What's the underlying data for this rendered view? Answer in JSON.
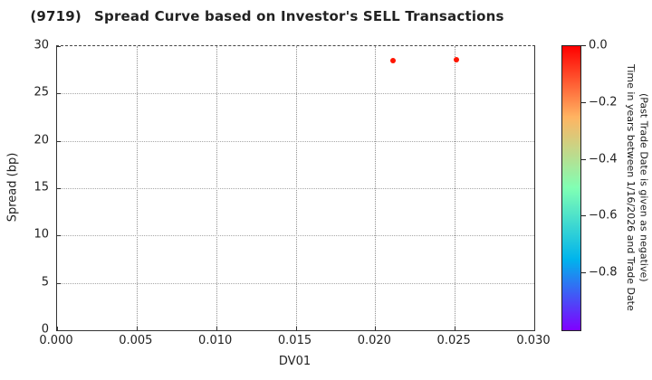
{
  "chart_data": {
    "type": "scatter",
    "title": "(9719)  Spread Curve based on Investor's SELL Transactions",
    "title_ticker": "(9719)",
    "title_text": "Spread Curve based on Investor's SELL Transactions",
    "xlabel": "DV01",
    "ylabel": "Spread (bp)",
    "xlim": [
      0.0,
      0.03
    ],
    "ylim": [
      0,
      30
    ],
    "grid": true,
    "xticks": {
      "values": [
        0.0,
        0.005,
        0.01,
        0.015,
        0.02,
        0.025,
        0.03
      ],
      "labels": [
        "0.000",
        "0.005",
        "0.010",
        "0.015",
        "0.020",
        "0.025",
        "0.030"
      ]
    },
    "yticks": {
      "values": [
        0,
        5,
        10,
        15,
        20,
        25,
        30
      ],
      "labels": [
        "0",
        "5",
        "10",
        "15",
        "20",
        "25",
        "30"
      ]
    },
    "points": [
      {
        "x": 0.0211,
        "y": 28.5,
        "time_value": 0.0,
        "color": "#ff1500"
      },
      {
        "x": 0.0251,
        "y": 28.6,
        "time_value": 0.0,
        "color": "#ff1500"
      }
    ],
    "colorbar": {
      "label_line1": "Time in years between 1/16/2026 and Trade Date",
      "label_line2": "(Past Trade Date is given as negative)",
      "range": [
        -1.0,
        0.0
      ],
      "ticks": {
        "values": [
          0.0,
          -0.2,
          -0.4,
          -0.6,
          -0.8
        ],
        "labels": [
          "0.0",
          "−0.2",
          "−0.4",
          "−0.6",
          "−0.8"
        ]
      },
      "gradient": [
        {
          "pos": 0.0,
          "color": "#ff0000"
        },
        {
          "pos": 0.25,
          "color": "#ffb462"
        },
        {
          "pos": 0.5,
          "color": "#80ffb4"
        },
        {
          "pos": 0.75,
          "color": "#00b4ec"
        },
        {
          "pos": 1.0,
          "color": "#8000ff"
        }
      ]
    },
    "colors": {
      "axis_border": "#333333",
      "gridline": "#9a9a9a",
      "point": "#ff1500",
      "text": "#222222"
    }
  }
}
